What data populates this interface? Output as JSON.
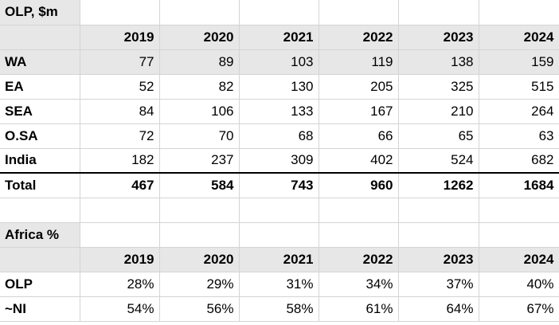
{
  "olp_table": {
    "title": "OLP, $m",
    "years": [
      "2019",
      "2020",
      "2021",
      "2022",
      "2023",
      "2024"
    ],
    "rows": [
      {
        "label": "WA",
        "values": [
          "77",
          "89",
          "103",
          "119",
          "138",
          "159"
        ]
      },
      {
        "label": "EA",
        "values": [
          "52",
          "82",
          "130",
          "205",
          "325",
          "515"
        ]
      },
      {
        "label": "SEA",
        "values": [
          "84",
          "106",
          "133",
          "167",
          "210",
          "264"
        ]
      },
      {
        "label": "O.SA",
        "values": [
          "72",
          "70",
          "68",
          "66",
          "65",
          "63"
        ]
      },
      {
        "label": "India",
        "values": [
          "182",
          "237",
          "309",
          "402",
          "524",
          "682"
        ]
      }
    ],
    "total": {
      "label": "Total",
      "values": [
        "467",
        "584",
        "743",
        "960",
        "1262",
        "1684"
      ]
    }
  },
  "africa_table": {
    "title": "Africa %",
    "years": [
      "2019",
      "2020",
      "2021",
      "2022",
      "2023",
      "2024"
    ],
    "rows": [
      {
        "label": "OLP",
        "values": [
          "28%",
          "29%",
          "31%",
          "34%",
          "37%",
          "40%"
        ]
      },
      {
        "label": "~NI",
        "values": [
          "54%",
          "56%",
          "58%",
          "61%",
          "64%",
          "67%"
        ]
      }
    ]
  },
  "colors": {
    "header_fill": "#e7e7e7",
    "grid": "#d4d4d4",
    "text": "#000000"
  }
}
